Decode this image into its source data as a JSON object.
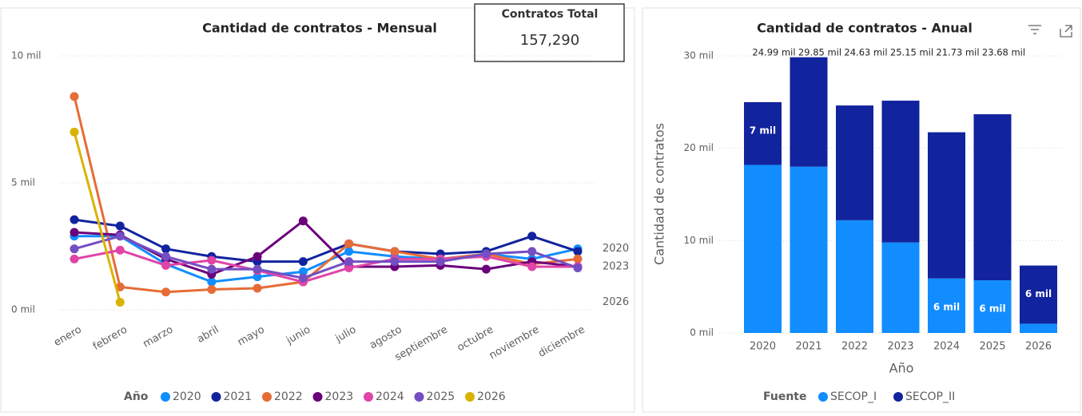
{
  "card": {
    "title": "Contratos Total",
    "value": "157,290"
  },
  "chart_data": [
    {
      "type": "line",
      "title": "Cantidad de contratos - Mensual",
      "legend_title": "Año",
      "categories": [
        "enero",
        "febrero",
        "marzo",
        "abril",
        "mayo",
        "junio",
        "julio",
        "agosto",
        "septiembre",
        "octubre",
        "noviembre",
        "diciembre"
      ],
      "ylim": [
        -0.5,
        10.5
      ],
      "yticks": [
        {
          "value": 0,
          "label": "0 mil"
        },
        {
          "value": 5,
          "label": "5 mil"
        },
        {
          "value": 10,
          "label": "10 mil"
        }
      ],
      "grid": true,
      "series": [
        {
          "name": "2020",
          "color": "#118DFF",
          "end_label": true,
          "values": [
            2.9,
            2.9,
            1.8,
            1.1,
            1.3,
            1.5,
            2.3,
            2.1,
            2.0,
            2.2,
            2.0,
            2.4
          ]
        },
        {
          "name": "2021",
          "color": "#12239E",
          "end_label": false,
          "values": [
            3.55,
            3.3,
            2.4,
            2.1,
            1.9,
            1.9,
            2.6,
            2.3,
            2.2,
            2.3,
            2.9,
            2.3
          ]
        },
        {
          "name": "2022",
          "color": "#E66C37",
          "end_label": false,
          "values": [
            8.4,
            0.9,
            0.7,
            0.8,
            0.85,
            1.1,
            2.6,
            2.3,
            2.0,
            2.2,
            1.8,
            2.0
          ]
        },
        {
          "name": "2023",
          "color": "#6B007B",
          "end_label": true,
          "values": [
            3.05,
            2.95,
            2.0,
            1.4,
            2.1,
            3.5,
            1.7,
            1.7,
            1.75,
            1.6,
            1.9,
            1.7
          ]
        },
        {
          "name": "2024",
          "color": "#E044A7",
          "end_label": false,
          "values": [
            2.0,
            2.35,
            1.75,
            1.95,
            1.55,
            1.1,
            1.65,
            2.0,
            2.0,
            2.1,
            1.7,
            1.7
          ]
        },
        {
          "name": "2025",
          "color": "#744EC2",
          "end_label": false,
          "values": [
            2.4,
            2.9,
            2.1,
            1.6,
            1.6,
            1.25,
            1.9,
            1.9,
            1.9,
            2.2,
            2.3,
            1.65
          ]
        },
        {
          "name": "2026",
          "color": "#D9B300",
          "end_label": true,
          "values": [
            7.0,
            0.3,
            null,
            null,
            null,
            null,
            null,
            null,
            null,
            null,
            null,
            null
          ]
        }
      ]
    },
    {
      "type": "stacked-bar",
      "title": "Cantidad de contratos - Anual",
      "xlabel": "Año",
      "ylabel": "Cantidad de contratos",
      "legend_title": "Fuente",
      "categories": [
        "2020",
        "2021",
        "2022",
        "2023",
        "2024",
        "2025",
        "2026"
      ],
      "ylim": [
        0,
        31
      ],
      "yticks": [
        {
          "value": 0,
          "label": "0 mil"
        },
        {
          "value": 10,
          "label": "10 mil"
        },
        {
          "value": 20,
          "label": "20 mil"
        },
        {
          "value": 30,
          "label": "30 mil"
        }
      ],
      "grid": true,
      "series": [
        {
          "name": "SECOP_I",
          "color": "#118DFF",
          "values": [
            18.2,
            18.0,
            12.2,
            9.8,
            5.9,
            5.7,
            1.0
          ],
          "value_labels": [
            null,
            null,
            null,
            null,
            "6 mil",
            "6 mil",
            null
          ]
        },
        {
          "name": "SECOP_II",
          "color": "#12239E",
          "values": [
            6.79,
            11.85,
            12.43,
            15.35,
            15.83,
            17.98,
            6.3
          ],
          "value_labels": [
            "7 mil",
            null,
            null,
            null,
            null,
            null,
            "6 mil"
          ]
        }
      ],
      "totals": [
        24.99,
        29.85,
        24.63,
        25.15,
        21.73,
        23.68,
        null
      ],
      "total_labels": [
        "24.99 mil",
        "29.85 mil",
        "24.63 mil",
        "25.15 mil",
        "21.73 mil",
        "23.68 mil",
        null
      ]
    }
  ]
}
